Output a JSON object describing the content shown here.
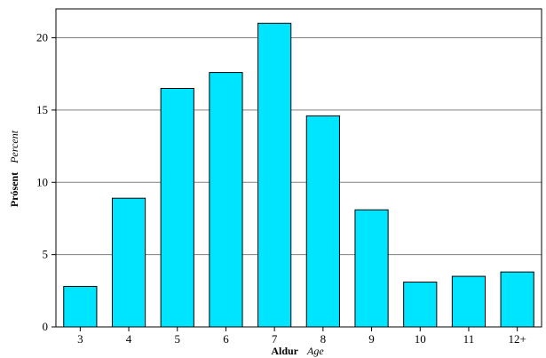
{
  "chart_data": {
    "type": "bar",
    "categories": [
      "3",
      "4",
      "5",
      "6",
      "7",
      "8",
      "9",
      "10",
      "11",
      "12+"
    ],
    "values": [
      2.8,
      8.9,
      16.5,
      17.6,
      21.0,
      14.6,
      8.1,
      3.1,
      3.5,
      3.8
    ],
    "xlabel": "Aldur",
    "xlabel_alt": "Age",
    "ylabel": "Prósent",
    "ylabel_alt": "Percent",
    "ylim": [
      0,
      22
    ],
    "yticks": [
      0,
      5,
      10,
      15,
      20
    ],
    "grid": true,
    "bar_color": "#00e5ff",
    "bar_stroke": "#000000",
    "grid_color": "#808080"
  }
}
